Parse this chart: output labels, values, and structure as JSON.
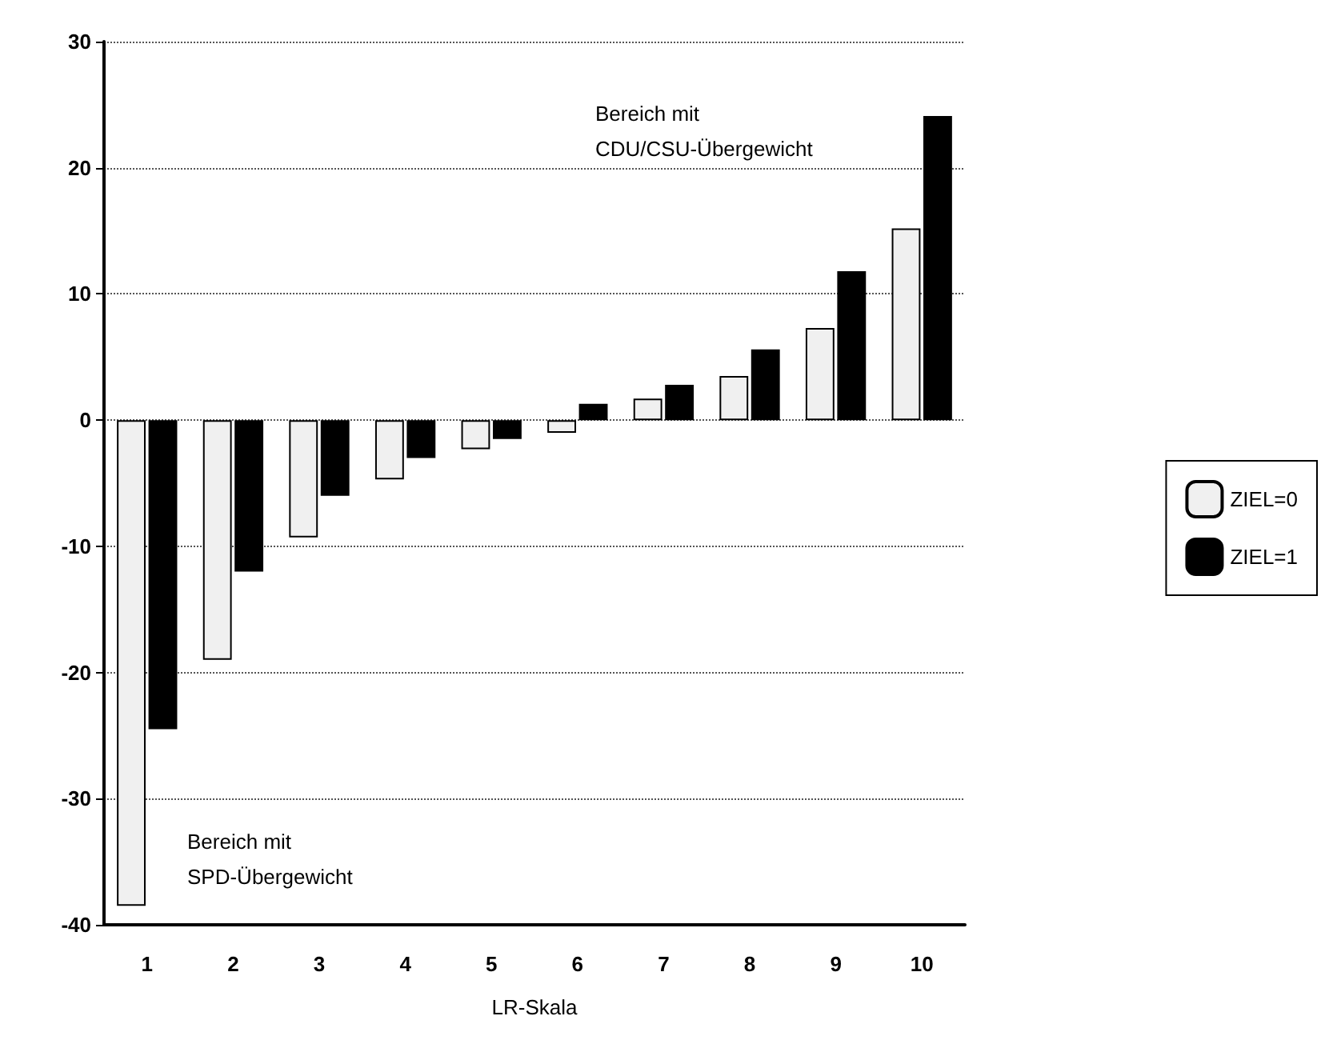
{
  "chart_data": {
    "type": "bar",
    "xlabel": "LR-Skala",
    "categories": [
      "1",
      "2",
      "3",
      "4",
      "5",
      "6",
      "7",
      "8",
      "9",
      "10"
    ],
    "series": [
      {
        "name": "ZIEL=0",
        "color": "#f0f0f0",
        "values": [
          -38.5,
          -19,
          -9.3,
          -4.7,
          -2.3,
          -1,
          1.7,
          3.5,
          7.3,
          15.2
        ]
      },
      {
        "name": "ZIEL=1",
        "color": "#000000",
        "values": [
          -24.5,
          -12,
          -6,
          -3,
          -1.5,
          1.3,
          2.8,
          5.6,
          11.8,
          24.1
        ]
      }
    ],
    "ylim": [
      -40,
      30
    ],
    "yticks": [
      -40,
      -30,
      -20,
      -10,
      0,
      10,
      20,
      30
    ],
    "grid": "y",
    "legend": "right",
    "annotations": [
      "Bereich mit\nCDU/CSU-Übergewicht",
      "Bereich mit\nSPD-Übergewicht"
    ]
  }
}
